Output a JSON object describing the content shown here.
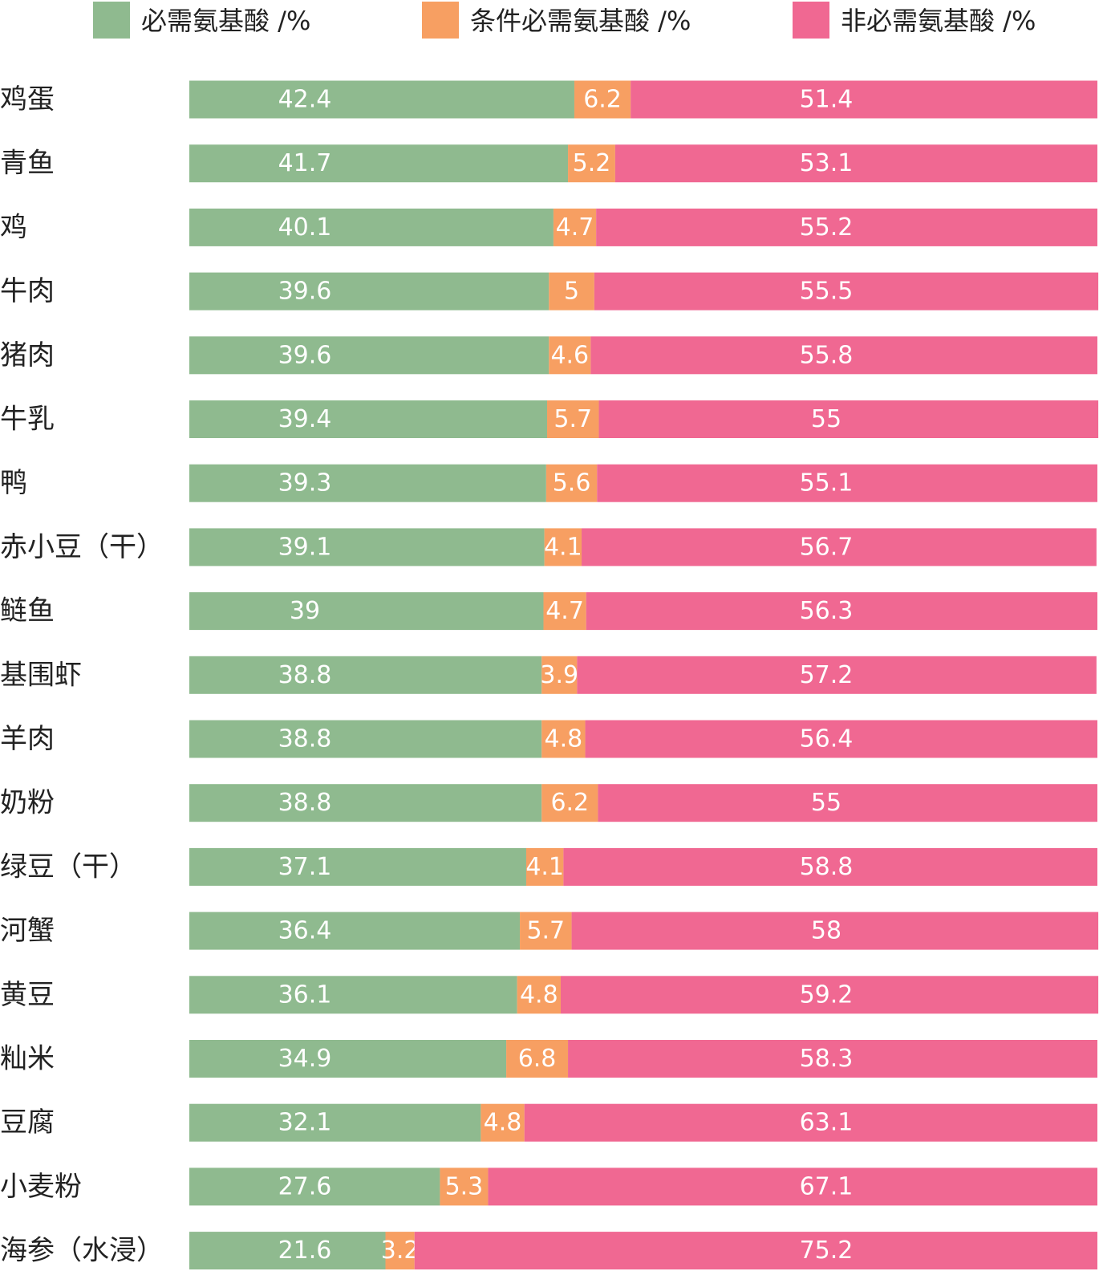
{
  "chart_data": {
    "type": "bar",
    "orientation": "horizontal",
    "stacked": true,
    "legend_position": "top",
    "grid": false,
    "xlim": [
      0,
      100
    ],
    "categories": [
      "鸡蛋",
      "青鱼",
      "鸡",
      "牛肉",
      "猪肉",
      "牛乳",
      "鸭",
      "赤小豆（干）",
      "鲢鱼",
      "基围虾",
      "羊肉",
      "奶粉",
      "绿豆（干）",
      "河蟹",
      "黄豆",
      "籼米",
      "豆腐",
      "小麦粉",
      "海参（水浸）"
    ],
    "series": [
      {
        "name": "必需氨基酸 /%",
        "color": "#8fba8f",
        "values": [
          42.4,
          41.7,
          40.1,
          39.6,
          39.6,
          39.4,
          39.3,
          39.1,
          39,
          38.8,
          38.8,
          38.8,
          37.1,
          36.4,
          36.1,
          34.9,
          32.1,
          27.6,
          21.6
        ]
      },
      {
        "name": "条件必需氨基酸 /%",
        "color": "#f79f62",
        "values": [
          6.2,
          5.2,
          4.7,
          5,
          4.6,
          5.7,
          5.6,
          4.1,
          4.7,
          3.9,
          4.8,
          6.2,
          4.1,
          5.7,
          4.8,
          6.8,
          4.8,
          5.3,
          3.2
        ]
      },
      {
        "name": "非必需氨基酸 /%",
        "color": "#f06892",
        "values": [
          51.4,
          53.1,
          55.2,
          55.5,
          55.8,
          55,
          55.1,
          56.7,
          56.3,
          57.2,
          56.4,
          55,
          58.8,
          58,
          59.2,
          58.3,
          63.1,
          67.1,
          75.2
        ]
      }
    ]
  }
}
